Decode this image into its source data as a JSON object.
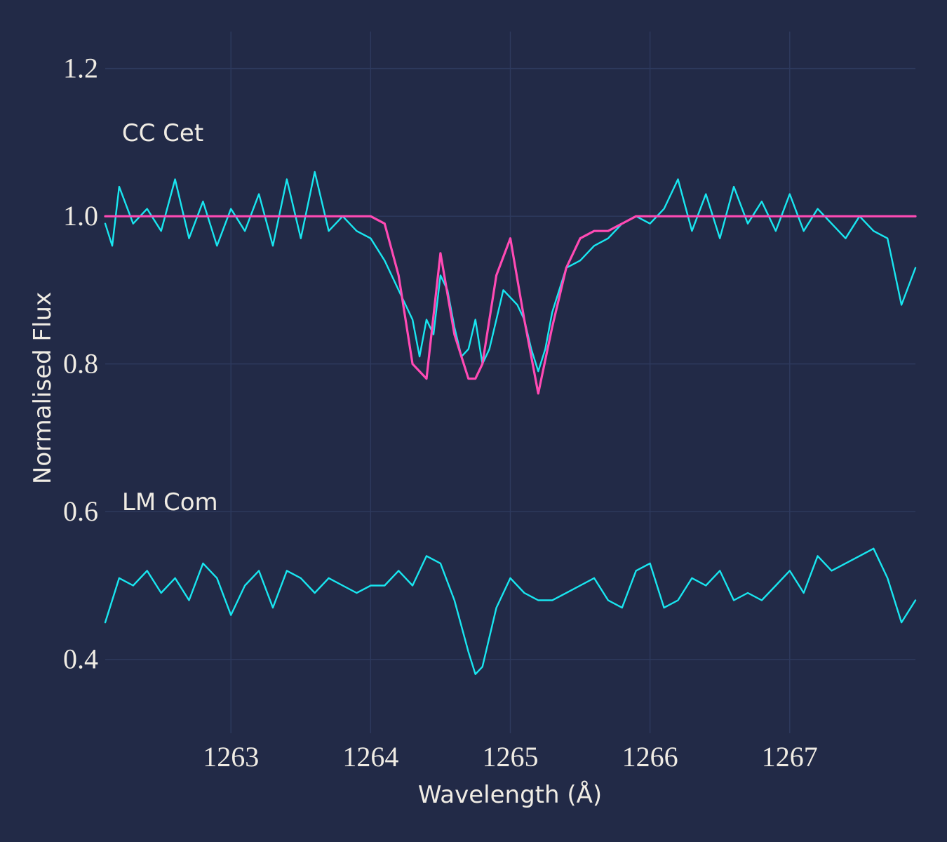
{
  "chart_data": {
    "type": "line",
    "title": "",
    "xlabel": "Wavelength (Å)",
    "ylabel": "Normalised Flux",
    "xlim": [
      1262.1,
      1267.9
    ],
    "ylim": [
      0.3,
      1.25
    ],
    "x_ticks": [
      1263,
      1264,
      1265,
      1266,
      1267
    ],
    "x_tick_labels": [
      "1263",
      "1264",
      "1265",
      "1266",
      "1267"
    ],
    "y_ticks": [
      0.4,
      0.6,
      0.8,
      1.0,
      1.2
    ],
    "y_tick_labels": [
      "0.4",
      "0.6",
      "0.8",
      "1.0",
      "1.2"
    ],
    "grid": true,
    "annotations": [
      {
        "text": "CC Cet",
        "x": 1262.22,
        "y": 1.1
      },
      {
        "text": "LM Com",
        "x": 1262.22,
        "y": 0.6
      }
    ],
    "series": [
      {
        "color": "#19e6f0",
        "x": [
          1262.1,
          1262.15,
          1262.2,
          1262.3,
          1262.4,
          1262.5,
          1262.6,
          1262.7,
          1262.8,
          1262.9,
          1263.0,
          1263.1,
          1263.2,
          1263.3,
          1263.4,
          1263.5,
          1263.6,
          1263.7,
          1263.8,
          1263.9,
          1264.0,
          1264.1,
          1264.2,
          1264.3,
          1264.35,
          1264.4,
          1264.45,
          1264.5,
          1264.55,
          1264.6,
          1264.65,
          1264.7,
          1264.75,
          1264.8,
          1264.85,
          1264.9,
          1264.95,
          1265.0,
          1265.05,
          1265.1,
          1265.15,
          1265.2,
          1265.25,
          1265.3,
          1265.4,
          1265.5,
          1265.6,
          1265.7,
          1265.8,
          1265.9,
          1266.0,
          1266.1,
          1266.2,
          1266.3,
          1266.4,
          1266.5,
          1266.6,
          1266.7,
          1266.8,
          1266.9,
          1267.0,
          1267.1,
          1267.2,
          1267.3,
          1267.4,
          1267.5,
          1267.6,
          1267.7,
          1267.8,
          1267.9
        ],
        "y": [
          0.99,
          0.96,
          1.04,
          0.99,
          1.01,
          0.98,
          1.05,
          0.97,
          1.02,
          0.96,
          1.01,
          0.98,
          1.03,
          0.96,
          1.05,
          0.97,
          1.06,
          0.98,
          1.0,
          0.98,
          0.97,
          0.94,
          0.9,
          0.86,
          0.81,
          0.86,
          0.84,
          0.92,
          0.9,
          0.85,
          0.81,
          0.82,
          0.86,
          0.8,
          0.82,
          0.86,
          0.9,
          0.89,
          0.88,
          0.86,
          0.82,
          0.79,
          0.82,
          0.87,
          0.93,
          0.94,
          0.96,
          0.97,
          0.99,
          1.0,
          0.99,
          1.01,
          1.05,
          0.98,
          1.03,
          0.97,
          1.04,
          0.99,
          1.02,
          0.98,
          1.03,
          0.98,
          1.01,
          0.99,
          0.97,
          1.0,
          0.98,
          0.97,
          0.88,
          0.93
        ]
      },
      {
        "color": "#ff4ab4",
        "x": [
          1262.1,
          1264.0,
          1264.1,
          1264.2,
          1264.3,
          1264.4,
          1264.5,
          1264.6,
          1264.7,
          1264.75,
          1264.8,
          1264.9,
          1265.0,
          1265.1,
          1265.2,
          1265.3,
          1265.4,
          1265.5,
          1265.6,
          1265.7,
          1265.8,
          1265.9,
          1267.9
        ],
        "y": [
          1.0,
          1.0,
          0.99,
          0.92,
          0.8,
          0.78,
          0.95,
          0.84,
          0.78,
          0.78,
          0.8,
          0.92,
          0.97,
          0.86,
          0.76,
          0.85,
          0.93,
          0.97,
          0.98,
          0.98,
          0.99,
          1.0,
          1.0
        ]
      },
      {
        "color": "#19e6f0",
        "x": [
          1262.1,
          1262.2,
          1262.3,
          1262.4,
          1262.5,
          1262.6,
          1262.7,
          1262.8,
          1262.9,
          1263.0,
          1263.1,
          1263.2,
          1263.3,
          1263.4,
          1263.5,
          1263.6,
          1263.7,
          1263.8,
          1263.9,
          1264.0,
          1264.1,
          1264.2,
          1264.3,
          1264.4,
          1264.5,
          1264.6,
          1264.7,
          1264.75,
          1264.8,
          1264.9,
          1265.0,
          1265.1,
          1265.2,
          1265.3,
          1265.4,
          1265.5,
          1265.6,
          1265.7,
          1265.8,
          1265.9,
          1266.0,
          1266.1,
          1266.2,
          1266.3,
          1266.4,
          1266.5,
          1266.6,
          1266.7,
          1266.8,
          1266.9,
          1267.0,
          1267.1,
          1267.2,
          1267.3,
          1267.4,
          1267.5,
          1267.6,
          1267.7,
          1267.8,
          1267.9
        ],
        "y": [
          0.45,
          0.51,
          0.5,
          0.52,
          0.49,
          0.51,
          0.48,
          0.53,
          0.51,
          0.46,
          0.5,
          0.52,
          0.47,
          0.52,
          0.51,
          0.49,
          0.51,
          0.5,
          0.49,
          0.5,
          0.5,
          0.52,
          0.5,
          0.54,
          0.53,
          0.48,
          0.41,
          0.38,
          0.39,
          0.47,
          0.51,
          0.49,
          0.48,
          0.48,
          0.49,
          0.5,
          0.51,
          0.48,
          0.47,
          0.52,
          0.53,
          0.47,
          0.48,
          0.51,
          0.5,
          0.52,
          0.48,
          0.49,
          0.48,
          0.5,
          0.52,
          0.49,
          0.54,
          0.52,
          0.53,
          0.54,
          0.55,
          0.51,
          0.45,
          0.48
        ]
      }
    ]
  }
}
